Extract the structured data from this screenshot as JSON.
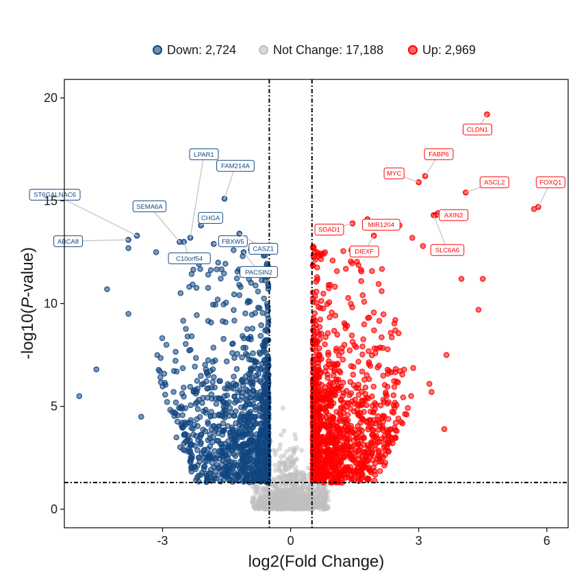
{
  "chart_data": {
    "type": "scatter",
    "xlabel": "log2(Fold Change)",
    "ylabel_prefix": "-log10(",
    "ylabel_italic": "P",
    "ylabel_suffix": "-value)",
    "xlim": [
      -5.3,
      6.5
    ],
    "ylim": [
      -0.9,
      20.9
    ],
    "xticks": [
      -3,
      0,
      3,
      6
    ],
    "xtick_labels": [
      "-3",
      "0",
      "3",
      "6"
    ],
    "yticks": [
      0,
      5,
      10,
      15,
      20
    ],
    "ytick_labels": [
      "0",
      "5",
      "10",
      "15",
      "20"
    ],
    "grid": false,
    "legend_position": "top",
    "thresholds": {
      "fold_change_x": [
        -0.5,
        0.5
      ],
      "pvalue_y": 1.3
    },
    "colors": {
      "down": "#12467f",
      "not_change": "#bfbfbf",
      "up": "#ff0000",
      "threshold_line": "#000000"
    },
    "legend": [
      {
        "key": "down",
        "label": "Down: 2,724"
      },
      {
        "key": "not_change",
        "label": "Not Change: 17,188"
      },
      {
        "key": "up",
        "label": "Up: 2,969"
      }
    ],
    "series": [
      {
        "key": "down",
        "name": "Down: 2,724",
        "count": 2724
      },
      {
        "key": "not_change",
        "name": "Not Change: 17,188",
        "count": 17188
      },
      {
        "key": "up",
        "name": "Up: 2,969",
        "count": 2969
      }
    ],
    "labeled_genes": [
      {
        "gene": "ABCA8",
        "x": -3.8,
        "y": 13.1,
        "group": "down"
      },
      {
        "gene": "ST6GALNAC6",
        "x": -3.6,
        "y": 13.3,
        "group": "down"
      },
      {
        "gene": "SEMA6A",
        "x": -2.6,
        "y": 13.0,
        "group": "down"
      },
      {
        "gene": "LPAR1",
        "x": -2.35,
        "y": 13.2,
        "group": "down"
      },
      {
        "gene": "C10orf54",
        "x": -2.5,
        "y": 13.0,
        "group": "down"
      },
      {
        "gene": "CHGA",
        "x": -2.1,
        "y": 13.8,
        "group": "down"
      },
      {
        "gene": "FBXW5",
        "x": -1.8,
        "y": 12.9,
        "group": "down"
      },
      {
        "gene": "FAM214A",
        "x": -1.55,
        "y": 15.1,
        "group": "down"
      },
      {
        "gene": "CASZ1",
        "x": -1.2,
        "y": 13.4,
        "group": "down"
      },
      {
        "gene": "PACSIN2",
        "x": -1.1,
        "y": 12.5,
        "group": "down"
      },
      {
        "gene": "CLDN1",
        "x": 4.6,
        "y": 19.2,
        "group": "up"
      },
      {
        "gene": "FABP6",
        "x": 3.15,
        "y": 16.2,
        "group": "up"
      },
      {
        "gene": "ASCL2",
        "x": 4.1,
        "y": 15.4,
        "group": "up"
      },
      {
        "gene": "MYC",
        "x": 3.0,
        "y": 15.9,
        "group": "up"
      },
      {
        "gene": "AXIN2",
        "x": 3.4,
        "y": 14.3,
        "group": "up"
      },
      {
        "gene": "FOXQ1",
        "x": 5.8,
        "y": 14.7,
        "group": "up"
      },
      {
        "gene": "SDAD1",
        "x": 1.45,
        "y": 13.9,
        "group": "up"
      },
      {
        "gene": "MIR1204",
        "x": 1.8,
        "y": 14.1,
        "group": "up"
      },
      {
        "gene": "DIEXF",
        "x": 1.95,
        "y": 13.3,
        "group": "up"
      },
      {
        "gene": "SLC6A6",
        "x": 3.35,
        "y": 14.3,
        "group": "up"
      }
    ],
    "outlier_points": [
      {
        "x": -4.95,
        "y": 5.5,
        "group": "down"
      },
      {
        "x": -4.55,
        "y": 6.8,
        "group": "down"
      },
      {
        "x": -4.3,
        "y": 10.7,
        "group": "down"
      },
      {
        "x": -3.8,
        "y": 12.7,
        "group": "down"
      },
      {
        "x": -3.15,
        "y": 12.5,
        "group": "down"
      },
      {
        "x": -3.5,
        "y": 4.5,
        "group": "down"
      },
      {
        "x": -3.8,
        "y": 9.5,
        "group": "down"
      },
      {
        "x": 5.7,
        "y": 14.6,
        "group": "up"
      },
      {
        "x": 4.5,
        "y": 11.2,
        "group": "up"
      },
      {
        "x": 4.0,
        "y": 11.2,
        "group": "up"
      },
      {
        "x": 4.4,
        "y": 9.7,
        "group": "up"
      },
      {
        "x": 3.65,
        "y": 7.5,
        "group": "up"
      },
      {
        "x": 3.6,
        "y": 3.9,
        "group": "up"
      },
      {
        "x": 3.25,
        "y": 6.1,
        "group": "up"
      },
      {
        "x": 2.85,
        "y": 13.2,
        "group": "up"
      },
      {
        "x": 3.45,
        "y": 14.4,
        "group": "up"
      },
      {
        "x": 3.1,
        "y": 12.8,
        "group": "up"
      },
      {
        "x": 2.55,
        "y": 13.8,
        "group": "up"
      },
      {
        "x": 3.3,
        "y": 5.7,
        "group": "up"
      }
    ],
    "density_envelope": {
      "down": [
        {
          "y": 1.3,
          "x_min": -2.2
        },
        {
          "y": 3,
          "x_min": -2.6
        },
        {
          "y": 5,
          "x_min": -2.9
        },
        {
          "y": 7,
          "x_min": -3.2
        },
        {
          "y": 9,
          "x_min": -3.0
        },
        {
          "y": 11,
          "x_min": -2.5
        },
        {
          "y": 12.5,
          "x_min": -2.2
        }
      ],
      "up": [
        {
          "y": 1.3,
          "x_max": 2.0
        },
        {
          "y": 3,
          "x_max": 2.4
        },
        {
          "y": 5,
          "x_max": 2.8
        },
        {
          "y": 7,
          "x_max": 2.9
        },
        {
          "y": 9,
          "x_max": 2.5
        },
        {
          "y": 11,
          "x_max": 2.3
        },
        {
          "y": 12.5,
          "x_max": 2.0
        }
      ]
    }
  }
}
